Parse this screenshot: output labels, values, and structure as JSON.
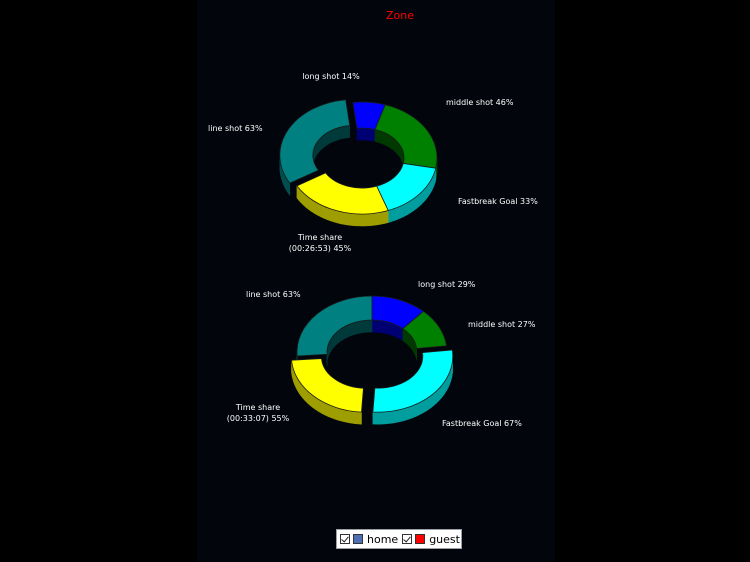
{
  "chart_data": [
    {
      "type": "pie",
      "variant": "donut-3d",
      "title": "Zone",
      "slices": [
        {
          "label": "long shot 14%",
          "value": 14,
          "color": "#0000ff"
        },
        {
          "label": "middle shot 46%",
          "value": 46,
          "color": "#008000"
        },
        {
          "label": "Fastbreak Goal 33%",
          "value": 33,
          "color": "#00ffff"
        },
        {
          "label": "Time share\n(00:26:53) 45%",
          "value": 45,
          "color": "#ffff00"
        },
        {
          "label": "line shot 63%",
          "value": 63,
          "color": "#008080"
        }
      ]
    },
    {
      "type": "pie",
      "variant": "donut-3d",
      "slices": [
        {
          "label": "long shot 29%",
          "value": 29,
          "color": "#0000ff"
        },
        {
          "label": "middle shot 27%",
          "value": 27,
          "color": "#008000"
        },
        {
          "label": "Fastbreak Goal 67%",
          "value": 67,
          "color": "#00ffff"
        },
        {
          "label": "Time share\n(00:33:07) 55%",
          "value": 55,
          "color": "#ffff00"
        },
        {
          "label": "line shot 63%",
          "value": 63,
          "color": "#008080"
        }
      ]
    }
  ],
  "legend": {
    "items": [
      {
        "label": "home",
        "color": "#4f6fb5",
        "checked": true
      },
      {
        "label": "guest",
        "color": "#ff0000",
        "checked": true
      }
    ]
  }
}
